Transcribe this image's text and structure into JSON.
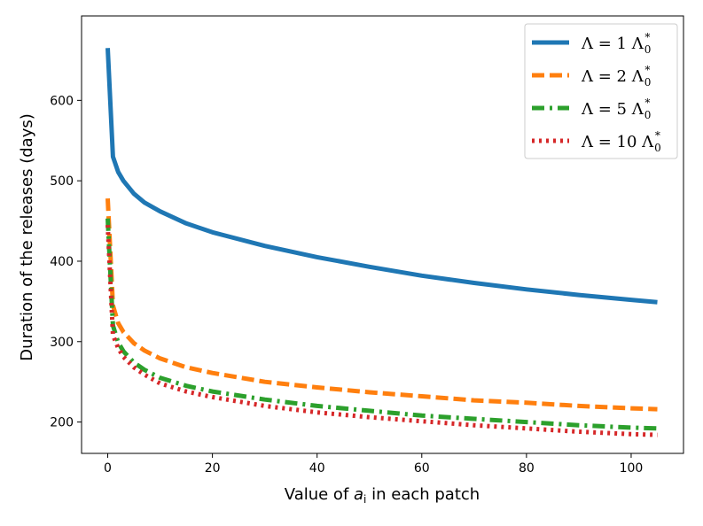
{
  "chart_data": {
    "type": "line",
    "title": "",
    "xlabel": {
      "prefix": "Value of ",
      "var": "a",
      "sub": "i",
      "suffix": " in each patch"
    },
    "ylabel": "Duration of the releases (days)",
    "xlim": [
      -5,
      110
    ],
    "ylim": [
      161,
      705
    ],
    "xticks": [
      0,
      20,
      40,
      60,
      80,
      100
    ],
    "yticks": [
      200,
      300,
      400,
      500,
      600
    ],
    "grid": false,
    "legend_position": "top-right",
    "x": [
      0,
      1,
      2,
      3,
      5,
      7,
      10,
      15,
      20,
      30,
      40,
      50,
      60,
      70,
      80,
      90,
      100,
      105
    ],
    "series": [
      {
        "name": "Λ = 1 Λ0*",
        "mult": "1",
        "color": "#1f77b4",
        "dash": "solid",
        "values": [
          665,
          530,
          511,
          500,
          484,
          473,
          462,
          447,
          436,
          419,
          405,
          393,
          382,
          373,
          365,
          358,
          352,
          349
        ]
      },
      {
        "name": "Λ = 2 Λ0*",
        "mult": "2",
        "color": "#ff7f0e",
        "dash": "dashed",
        "values": [
          478,
          345,
          323,
          312,
          298,
          289,
          279,
          268,
          261,
          250,
          243,
          237,
          232,
          227,
          224,
          220,
          217,
          216
        ]
      },
      {
        "name": "Λ = 5 Λ0*",
        "mult": "5",
        "color": "#2ca02c",
        "dash": "dashdot",
        "values": [
          453,
          320,
          299,
          288,
          274,
          265,
          255,
          245,
          238,
          228,
          220,
          214,
          208,
          204,
          200,
          196,
          193,
          192
        ]
      },
      {
        "name": "Λ = 10 Λ0*",
        "mult": "10",
        "color": "#d62728",
        "dash": "dotted",
        "values": [
          445,
          308,
          292,
          281,
          268,
          259,
          248,
          238,
          231,
          220,
          212,
          206,
          201,
          196,
          192,
          188,
          185,
          184
        ]
      }
    ]
  }
}
